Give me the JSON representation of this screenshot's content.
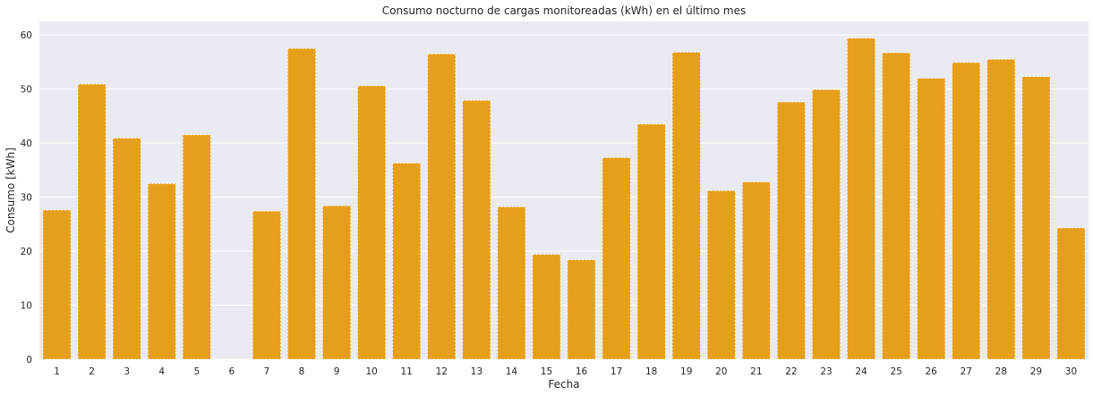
{
  "chart_data": {
    "type": "bar",
    "title": "Consumo nocturno de cargas monitoreadas (kWh) en el último mes",
    "xlabel": "Fecha",
    "ylabel": "Consumo [kWh]",
    "ylim": [
      0,
      62.5
    ],
    "yticks": [
      0,
      10,
      20,
      30,
      40,
      50,
      60
    ],
    "grid": true,
    "bar_color": "#E69F1A",
    "background_color": "#EAEAF2",
    "categories": [
      "1",
      "2",
      "3",
      "4",
      "5",
      "6",
      "7",
      "8",
      "9",
      "10",
      "11",
      "12",
      "13",
      "14",
      "15",
      "16",
      "17",
      "18",
      "19",
      "20",
      "21",
      "22",
      "23",
      "24",
      "25",
      "26",
      "27",
      "28",
      "29",
      "30"
    ],
    "values": [
      27.6,
      50.9,
      40.9,
      32.5,
      41.5,
      0,
      27.4,
      57.5,
      28.4,
      50.6,
      36.3,
      56.5,
      47.9,
      28.2,
      19.4,
      18.4,
      37.3,
      43.5,
      56.8,
      31.2,
      32.8,
      47.6,
      49.9,
      59.4,
      56.7,
      52.0,
      54.9,
      55.5,
      52.3,
      24.3
    ]
  }
}
